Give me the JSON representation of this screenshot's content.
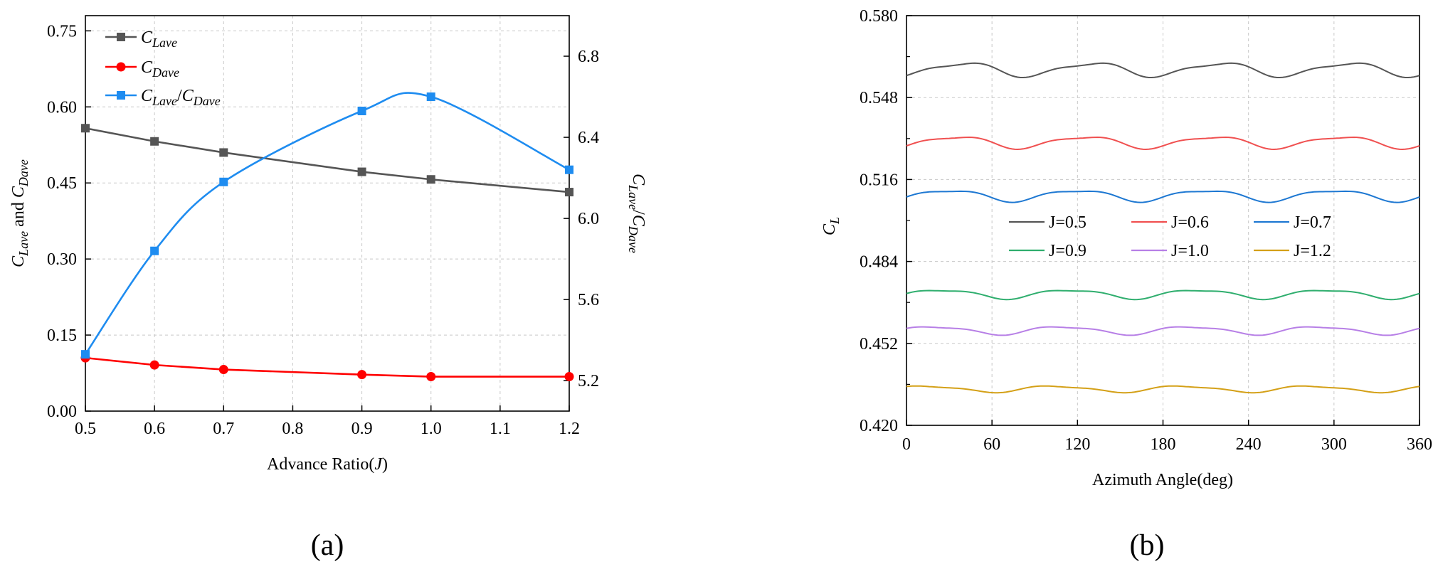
{
  "chart_data": [
    {
      "panel_label": "(a)",
      "type": "line",
      "xlabel": "Advance Ratio(J)",
      "ylabel_left": "C_Lave and C_Dave",
      "ylabel_right": "C_Lave/C_Dave",
      "x": [
        0.5,
        0.6,
        0.7,
        0.9,
        1.0,
        1.2
      ],
      "xlim": [
        0.5,
        1.2
      ],
      "xticks": [
        "0.5",
        "0.6",
        "0.7",
        "0.8",
        "0.9",
        "1.0",
        "1.1",
        "1.2"
      ],
      "ylim_left": [
        0,
        0.78
      ],
      "yticks_left": [
        "0.00",
        "0.15",
        "0.30",
        "0.45",
        "0.60",
        "0.75"
      ],
      "ylim_right": [
        5.05,
        7.0
      ],
      "yticks_right": [
        "5.2",
        "5.6",
        "6.0",
        "6.4",
        "6.8"
      ],
      "grid": true,
      "legend_position": "top-left",
      "series": [
        {
          "name": "C_Lave",
          "axis": "left",
          "color": "#555555",
          "marker": "square",
          "values": [
            0.558,
            0.532,
            0.51,
            0.472,
            0.457,
            0.432
          ]
        },
        {
          "name": "C_Dave",
          "axis": "left",
          "color": "#ff0000",
          "marker": "circle",
          "values": [
            0.105,
            0.091,
            0.082,
            0.072,
            0.068,
            0.068
          ]
        },
        {
          "name": "C_Lave/C_Dave",
          "axis": "right",
          "color": "#1e8cf0",
          "marker": "square",
          "values": [
            5.33,
            5.84,
            6.18,
            6.53,
            6.6,
            6.24
          ]
        }
      ]
    },
    {
      "panel_label": "(b)",
      "type": "line",
      "xlabel": "Azimuth Angle(deg)",
      "ylabel": "C_L",
      "xlim": [
        0,
        360
      ],
      "xticks": [
        "0",
        "60",
        "120",
        "180",
        "240",
        "300",
        "360"
      ],
      "ylim": [
        0.42,
        0.58
      ],
      "yticks": [
        "0.420",
        "0.452",
        "0.484",
        "0.516",
        "0.548",
        "0.580"
      ],
      "grid": true,
      "legend_position": "center",
      "period_deg": 90,
      "series": [
        {
          "name": "J=0.5",
          "color": "#555555",
          "mean": 0.559,
          "amplitude": 0.003
        },
        {
          "name": "J=0.6",
          "color": "#f05050",
          "mean": 0.5306,
          "amplitude": 0.0026
        },
        {
          "name": "J=0.7",
          "color": "#1e78d2",
          "mean": 0.5098,
          "amplitude": 0.0025
        },
        {
          "name": "J=0.9",
          "color": "#2fae6e",
          "mean": 0.4713,
          "amplitude": 0.002
        },
        {
          "name": "J=1.0",
          "color": "#b77fe6",
          "mean": 0.4571,
          "amplitude": 0.0018
        },
        {
          "name": "J=1.2",
          "color": "#d4a017",
          "mean": 0.4342,
          "amplitude": 0.0014
        }
      ]
    }
  ]
}
